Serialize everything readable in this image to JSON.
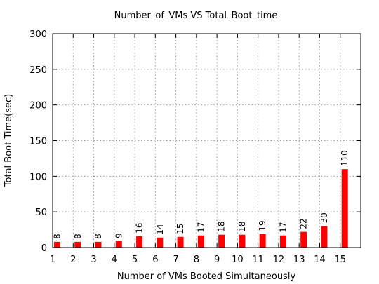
{
  "chart_data": {
    "type": "bar",
    "title": "Number_of_VMs VS Total_Boot_time",
    "xlabel": "Number of VMs Booted Simultaneously",
    "ylabel": "Total Boot Time(sec)",
    "categories": [
      "1",
      "2",
      "3",
      "4",
      "5",
      "6",
      "7",
      "8",
      "9",
      "10",
      "11",
      "12",
      "13",
      "14",
      "15"
    ],
    "values": [
      8,
      8,
      8,
      9,
      16,
      14,
      15,
      17,
      18,
      18,
      19,
      17,
      22,
      30,
      110
    ],
    "data_labels": [
      "8",
      "8",
      "8",
      "9",
      "16",
      "14",
      "15",
      "17",
      "18",
      "18",
      "19",
      "17",
      "22",
      "30",
      "110"
    ],
    "ylim": [
      0,
      300
    ],
    "yticks": [
      "0",
      "50",
      "100",
      "150",
      "200",
      "250",
      "300"
    ],
    "grid": true,
    "bar_color": "#ff0000"
  }
}
